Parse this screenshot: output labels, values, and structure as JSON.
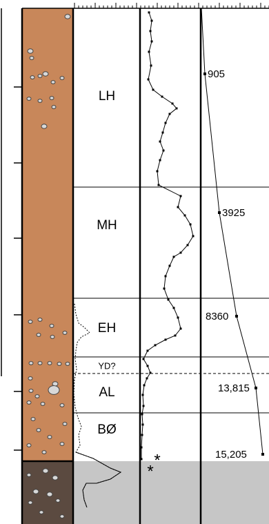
{
  "zones": [
    "LH",
    "MH",
    "EH",
    "YD?",
    "AL",
    "BØ"
  ],
  "ages": [
    "905",
    "3925",
    "8360",
    "13,815",
    "15,205"
  ],
  "markers": [
    "*",
    "*"
  ]
}
